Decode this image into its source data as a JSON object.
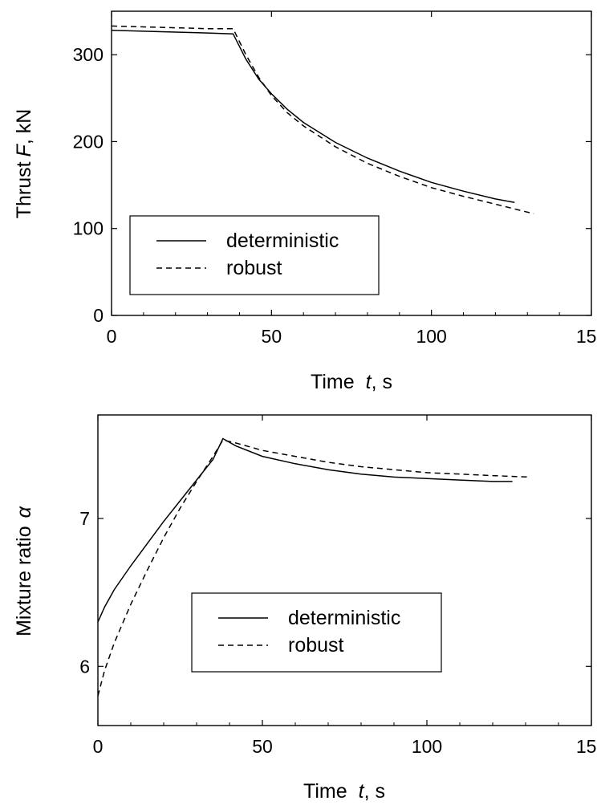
{
  "chart_data": [
    {
      "type": "line",
      "xlabel": {
        "pre": "Time",
        "var": "t",
        "post": ", s"
      },
      "ylabel": {
        "pre": "Thrust",
        "var": "F",
        "post": ", kN"
      },
      "xlim": [
        0,
        150
      ],
      "ylim": [
        0,
        350
      ],
      "xticks": [
        0,
        50,
        100,
        150
      ],
      "yticks": [
        0,
        100,
        200,
        300
      ],
      "grid": false,
      "legend_position": "bottom-left",
      "series": [
        {
          "name": "deterministic",
          "style": "solid",
          "x": [
            0,
            10,
            20,
            30,
            38,
            42,
            46,
            50,
            55,
            60,
            70,
            80,
            90,
            100,
            110,
            120,
            126
          ],
          "y": [
            328,
            327,
            326,
            325,
            324,
            295,
            272,
            255,
            237,
            222,
            199,
            181,
            166,
            153,
            143,
            134,
            130
          ]
        },
        {
          "name": "robust",
          "style": "dashed",
          "x": [
            0,
            10,
            20,
            30,
            38,
            42,
            46,
            50,
            55,
            60,
            70,
            80,
            90,
            100,
            110,
            120,
            132
          ],
          "y": [
            333,
            332,
            331,
            330,
            330,
            300,
            274,
            253,
            233,
            218,
            194,
            175,
            160,
            147,
            137,
            128,
            117
          ]
        }
      ]
    },
    {
      "type": "line",
      "xlabel": {
        "pre": "Time",
        "var": "t",
        "post": ", s"
      },
      "ylabel": {
        "pre": "Mixture ratio",
        "var": "α",
        "post": ""
      },
      "xlim": [
        0,
        150
      ],
      "ylim": [
        5.6,
        7.7
      ],
      "xticks": [
        0,
        50,
        100,
        150
      ],
      "yticks": [
        6,
        7
      ],
      "grid": false,
      "legend_position": "center-left",
      "series": [
        {
          "name": "deterministic",
          "style": "solid",
          "x": [
            0,
            2,
            5,
            10,
            15,
            20,
            25,
            30,
            35,
            38,
            42,
            50,
            60,
            70,
            80,
            90,
            100,
            110,
            120,
            126
          ],
          "y": [
            6.3,
            6.4,
            6.52,
            6.68,
            6.83,
            6.98,
            7.12,
            7.26,
            7.4,
            7.54,
            7.49,
            7.42,
            7.37,
            7.33,
            7.3,
            7.28,
            7.27,
            7.26,
            7.25,
            7.25
          ]
        },
        {
          "name": "robust",
          "style": "dashed",
          "x": [
            0,
            2,
            5,
            10,
            15,
            20,
            25,
            30,
            35,
            38,
            42,
            50,
            60,
            70,
            80,
            90,
            100,
            110,
            120,
            131
          ],
          "y": [
            5.8,
            5.97,
            6.16,
            6.42,
            6.65,
            6.87,
            7.07,
            7.25,
            7.42,
            7.53,
            7.51,
            7.46,
            7.42,
            7.38,
            7.35,
            7.33,
            7.31,
            7.3,
            7.29,
            7.28
          ]
        }
      ]
    }
  ]
}
